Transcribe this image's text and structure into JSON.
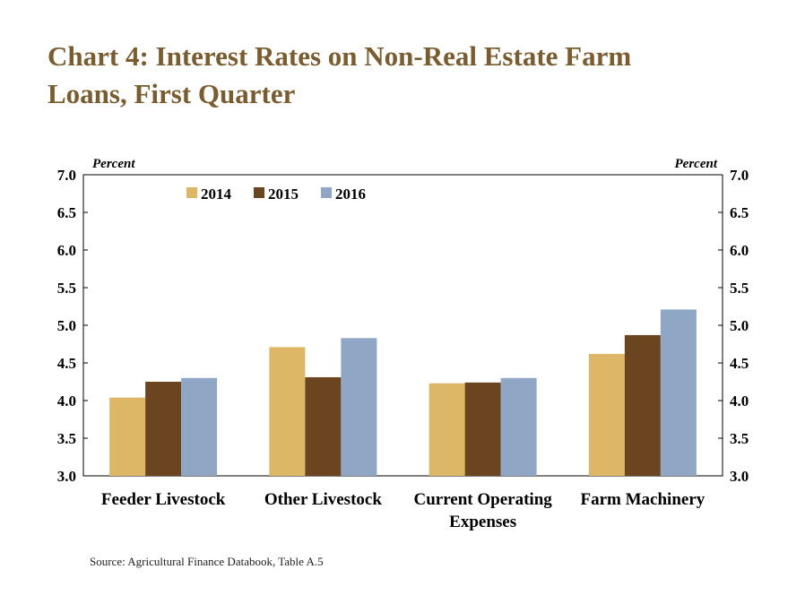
{
  "title_lines": [
    "Chart 4: Interest Rates on Non-Real Estate Farm",
    "Loans, First Quarter"
  ],
  "source": "Source: Agricultural Finance Databook, Table A.5",
  "colors": {
    "title": "#7b5c2e",
    "2014": "#ddb766",
    "2015": "#6b4420",
    "2016": "#8fa7c5"
  },
  "chart_data": {
    "type": "bar",
    "title": "Chart 4: Interest Rates on Non-Real Estate Farm Loans, First Quarter",
    "ylabel_left": "Percent",
    "ylabel_right": "Percent",
    "ylim": [
      3.0,
      7.0
    ],
    "yticks": [
      "3.0",
      "3.5",
      "4.0",
      "4.5",
      "5.0",
      "5.5",
      "6.0",
      "6.5",
      "7.0"
    ],
    "categories": [
      [
        "Feeder Livestock"
      ],
      [
        "Other Livestock"
      ],
      [
        "Current Operating",
        "Expenses"
      ],
      [
        "Farm Machinery"
      ]
    ],
    "series": [
      {
        "name": "2014",
        "values": [
          4.04,
          4.71,
          4.23,
          4.62
        ]
      },
      {
        "name": "2015",
        "values": [
          4.25,
          4.31,
          4.24,
          4.87
        ]
      },
      {
        "name": "2016",
        "values": [
          4.3,
          4.83,
          4.3,
          5.21
        ]
      }
    ],
    "grid": false,
    "legend_position": "top-left"
  }
}
